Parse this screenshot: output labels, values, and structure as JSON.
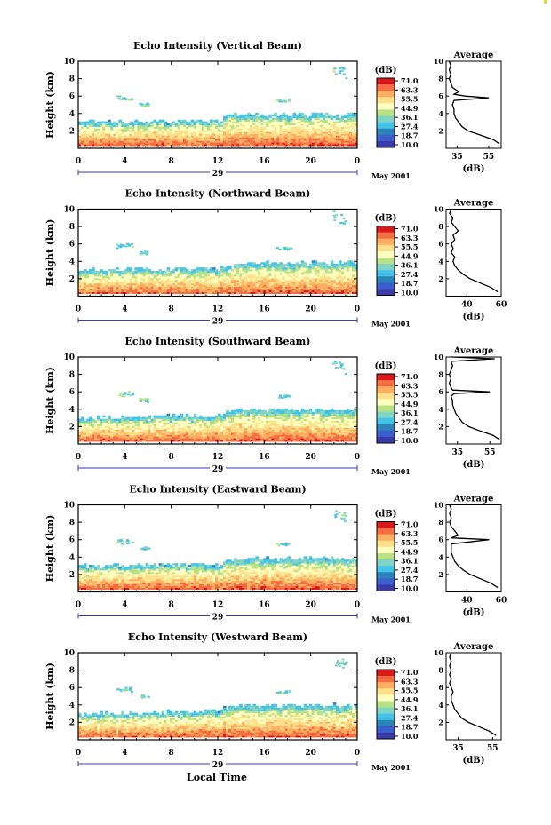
{
  "figure": {
    "xlabel": "Local Time",
    "date_label": "May 2001",
    "day_label": "29",
    "ylabel": "Height (km)",
    "colorbar_title": "(dB)",
    "avg_title": "Average",
    "avg_xlabel": "(dB)"
  },
  "colorbar": {
    "ticks": [
      "71.0",
      "63.3",
      "55.5",
      "44.9",
      "36.1",
      "27.4",
      "18.7",
      "10.0"
    ],
    "colors": [
      "#d7191c",
      "#f46d43",
      "#fdae61",
      "#fee08b",
      "#ffffbf",
      "#b8e186",
      "#7fd4c4",
      "#44c2e8",
      "#2b83ba",
      "#3a5fcd",
      "#3b3ba8"
    ]
  },
  "chart_data": [
    {
      "type": "heatmap",
      "title": "Echo Intensity (Vertical Beam)",
      "xlabel": "Local Time",
      "ylabel": "Height (km)",
      "xlim": [
        0,
        24
      ],
      "ylim": [
        0,
        10
      ],
      "xticks": [
        "0",
        "4",
        "8",
        "12",
        "16",
        "20",
        "0"
      ],
      "yticks": [
        "2",
        "4",
        "6",
        "8",
        "10"
      ],
      "colorbar_range": [
        10.0,
        71.0
      ],
      "layer_top_km": [
        [
          0,
          2.9
        ],
        [
          12,
          3.1
        ],
        [
          13,
          3.8
        ],
        [
          24,
          3.9
        ]
      ],
      "average_profile": {
        "xticks": [
          "35",
          "55"
        ],
        "xlim": [
          28,
          63
        ],
        "height_km": [
          0.5,
          1.0,
          1.5,
          2.0,
          2.5,
          3.0,
          3.5,
          4.0,
          4.5,
          5.0,
          5.5,
          5.8,
          6.0,
          6.2,
          6.5,
          7.0,
          7.5,
          8.0,
          8.5,
          9.0,
          9.5,
          10.0
        ],
        "db": [
          62,
          58,
          50,
          42,
          38,
          36,
          34,
          33,
          33,
          32,
          33,
          55,
          40,
          33,
          36,
          32,
          31,
          30,
          31,
          30,
          31,
          30
        ]
      }
    },
    {
      "type": "heatmap",
      "title": "Echo Intensity (Northward Beam)",
      "xlabel": "Local Time",
      "ylabel": "Height (km)",
      "xlim": [
        0,
        24
      ],
      "ylim": [
        0,
        10
      ],
      "xticks": [
        "0",
        "4",
        "8",
        "12",
        "16",
        "20",
        "0"
      ],
      "yticks": [
        "2",
        "4",
        "6",
        "8",
        "10"
      ],
      "colorbar_range": [
        10.0,
        71.0
      ],
      "layer_top_km": [
        [
          0,
          2.9
        ],
        [
          12,
          3.1
        ],
        [
          13,
          3.7
        ],
        [
          24,
          3.8
        ]
      ],
      "average_profile": {
        "xticks": [
          "40",
          "60"
        ],
        "xlim": [
          28,
          60
        ],
        "height_km": [
          0.5,
          1.0,
          1.5,
          2.0,
          2.5,
          3.0,
          3.5,
          4.0,
          4.5,
          5.0,
          5.5,
          6.0,
          6.5,
          7.0,
          7.5,
          8.0,
          8.5,
          9.0,
          9.5,
          10.0
        ],
        "db": [
          58,
          54,
          48,
          42,
          38,
          35,
          33,
          32,
          33,
          31,
          32,
          31,
          33,
          32,
          35,
          33,
          31,
          32,
          30,
          31
        ]
      }
    },
    {
      "type": "heatmap",
      "title": "Echo Intensity (Southward Beam)",
      "xlabel": "Local Time",
      "ylabel": "Height (km)",
      "xlim": [
        0,
        24
      ],
      "ylim": [
        0,
        10
      ],
      "xticks": [
        "0",
        "4",
        "8",
        "12",
        "16",
        "20",
        "0"
      ],
      "yticks": [
        "2",
        "4",
        "6",
        "8",
        "10"
      ],
      "colorbar_range": [
        10.0,
        71.0
      ],
      "layer_top_km": [
        [
          0,
          2.9
        ],
        [
          12,
          3.2
        ],
        [
          13,
          3.8
        ],
        [
          24,
          3.9
        ]
      ],
      "average_profile": {
        "xticks": [
          "35",
          "55"
        ],
        "xlim": [
          28,
          62
        ],
        "height_km": [
          0.5,
          1.0,
          1.5,
          2.0,
          2.5,
          3.0,
          3.5,
          4.0,
          4.5,
          5.0,
          5.5,
          5.8,
          6.0,
          6.2,
          6.5,
          7.0,
          7.5,
          8.0,
          8.5,
          9.0,
          9.5,
          9.8,
          10.0
        ],
        "db": [
          61,
          57,
          49,
          42,
          38,
          36,
          34,
          33,
          32,
          32,
          31,
          33,
          55,
          32,
          31,
          30,
          31,
          30,
          31,
          32,
          31,
          58,
          31
        ]
      }
    },
    {
      "type": "heatmap",
      "title": "Echo Intensity (Eastward Beam)",
      "xlabel": "Local Time",
      "ylabel": "Height (km)",
      "xlim": [
        0,
        24
      ],
      "ylim": [
        0,
        10
      ],
      "xticks": [
        "0",
        "4",
        "8",
        "12",
        "16",
        "20",
        "0"
      ],
      "yticks": [
        "2",
        "4",
        "6",
        "8",
        "10"
      ],
      "colorbar_range": [
        10.0,
        71.0
      ],
      "layer_top_km": [
        [
          0,
          2.9
        ],
        [
          12,
          3.1
        ],
        [
          13,
          3.7
        ],
        [
          24,
          3.8
        ]
      ],
      "average_profile": {
        "xticks": [
          "40",
          "60"
        ],
        "xlim": [
          28,
          60
        ],
        "height_km": [
          0.5,
          1.0,
          1.5,
          2.0,
          2.5,
          3.0,
          3.5,
          4.0,
          4.5,
          5.0,
          5.5,
          6.0,
          6.2,
          6.5,
          7.0,
          7.5,
          8.0,
          8.5,
          9.0,
          9.5,
          10.0
        ],
        "db": [
          58,
          54,
          48,
          42,
          38,
          35,
          33,
          32,
          31,
          31,
          31,
          53,
          31,
          35,
          33,
          31,
          30,
          31,
          30,
          31,
          30
        ]
      }
    },
    {
      "type": "heatmap",
      "title": "Echo Intensity (Westward Beam)",
      "xlabel": "Local Time",
      "ylabel": "Height (km)",
      "xlim": [
        0,
        24
      ],
      "ylim": [
        0,
        10
      ],
      "xticks": [
        "0",
        "4",
        "8",
        "12",
        "16",
        "20",
        "0"
      ],
      "yticks": [
        "2",
        "4",
        "6",
        "8",
        "10"
      ],
      "colorbar_range": [
        10.0,
        71.0
      ],
      "layer_top_km": [
        [
          0,
          2.9
        ],
        [
          12,
          3.2
        ],
        [
          13,
          3.8
        ],
        [
          24,
          3.9
        ]
      ],
      "average_profile": {
        "xticks": [
          "35",
          "55"
        ],
        "xlim": [
          28,
          60
        ],
        "height_km": [
          0.5,
          1.0,
          1.5,
          2.0,
          2.5,
          3.0,
          3.5,
          4.0,
          4.5,
          5.0,
          5.5,
          6.0,
          6.5,
          7.0,
          7.5,
          8.0,
          8.5,
          9.0,
          9.5,
          10.0
        ],
        "db": [
          57,
          53,
          47,
          41,
          37,
          35,
          33,
          32,
          31,
          31,
          32,
          31,
          30,
          31,
          30,
          31,
          30,
          31,
          30,
          31
        ]
      }
    }
  ]
}
